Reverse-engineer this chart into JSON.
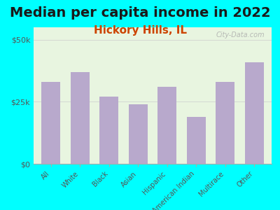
{
  "title": "Median per capita income in 2022",
  "subtitle": "Hickory Hills, IL",
  "categories": [
    "All",
    "White",
    "Black",
    "Asian",
    "Hispanic",
    "American Indian",
    "Multirace",
    "Other"
  ],
  "values": [
    33000,
    37000,
    27000,
    24000,
    31000,
    19000,
    33000,
    41000
  ],
  "bar_color": "#b8a9cc",
  "background_color": "#00ffff",
  "plot_bg_top": "#e8f5e0",
  "plot_bg_bottom": "#f5f5e8",
  "title_color": "#1a1a1a",
  "subtitle_color": "#cc4400",
  "axis_label_color": "#555555",
  "tick_label_color": "#555555",
  "yticks": [
    0,
    25000,
    50000
  ],
  "ytick_labels": [
    "$0",
    "$25k",
    "$50k"
  ],
  "ylim": [
    0,
    55000
  ],
  "watermark": "City-Data.com",
  "xlabel_fontsize": 8,
  "title_fontsize": 14,
  "subtitle_fontsize": 11
}
